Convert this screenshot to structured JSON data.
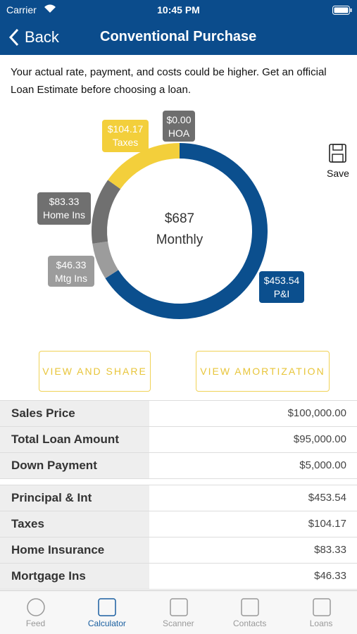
{
  "status_bar": {
    "carrier": "Carrier",
    "time": "10:45 PM"
  },
  "nav": {
    "back": "Back",
    "title": "Conventional Purchase"
  },
  "disclaimer": "Your actual rate, payment, and costs could be higher. Get an official Loan Estimate before choosing a loan.",
  "chart_data": {
    "type": "pie",
    "center_value": "$687",
    "center_label": "Monthly",
    "categories": [
      "P&I",
      "Mtg Ins",
      "Home Ins",
      "Taxes",
      "HOA"
    ],
    "values": [
      453.54,
      46.33,
      83.33,
      104.17,
      0
    ],
    "value_labels": [
      "$453.54",
      "$46.33",
      "$83.33",
      "$104.17",
      "$0.00"
    ],
    "colors": [
      "#0b4f8e",
      "#9c9c9c",
      "#707070",
      "#f3cf3b",
      "#6e6e6e"
    ]
  },
  "save": "Save",
  "buttons": [
    "VIEW AND SHARE",
    "VIEW AMORTIZATION"
  ],
  "loan_table": {
    "rows": [
      [
        "Sales Price",
        "$100,000.00"
      ],
      [
        "Total Loan Amount",
        "$95,000.00"
      ],
      [
        "Down Payment",
        "$5,000.00"
      ]
    ]
  },
  "payment_table": {
    "rows": [
      [
        "Principal & Int",
        "$453.54"
      ],
      [
        "Taxes",
        "$104.17"
      ],
      [
        "Home Insurance",
        "$83.33"
      ],
      [
        "Mortgage Ins",
        "$46.33"
      ]
    ]
  },
  "tabs": [
    "Feed",
    "Calculator",
    "Scanner",
    "Contacts",
    "Loans"
  ]
}
